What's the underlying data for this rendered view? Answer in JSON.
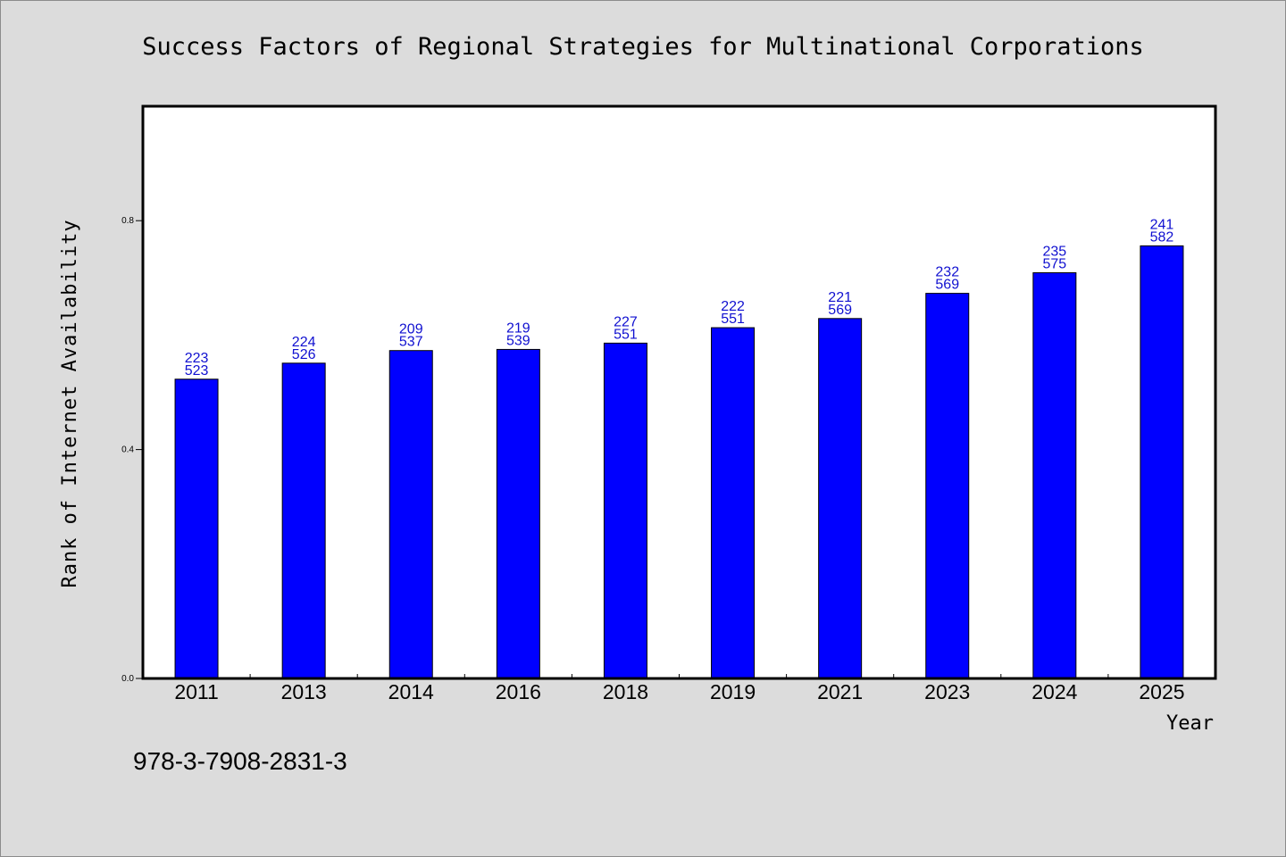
{
  "chart_data": {
    "type": "bar",
    "title": "Success Factors of Regional Strategies for Multinational Corporations",
    "xlabel": "Year",
    "ylabel": "Rank of Internet Availability",
    "categories": [
      "2011",
      "2013",
      "2014",
      "2016",
      "2018",
      "2019",
      "2021",
      "2023",
      "2024",
      "2025"
    ],
    "values": [
      0.523,
      0.551,
      0.573,
      0.575,
      0.586,
      0.613,
      0.629,
      0.673,
      0.709,
      0.756
    ],
    "labels_top": [
      "223",
      "224",
      "209",
      "219",
      "227",
      "222",
      "221",
      "232",
      "235",
      "241"
    ],
    "labels_bottom": [
      "523",
      "526",
      "537",
      "539",
      "551",
      "551",
      "569",
      "569",
      "575",
      "582"
    ],
    "yticks": [
      0.0,
      0.4,
      0.8
    ],
    "ytick_labels": [
      "0.0",
      "0.4",
      "0.8"
    ],
    "ylim": [
      0,
      1.0
    ],
    "bar_color": "#0000ff",
    "label_color": "#1010d0",
    "grid": false,
    "legend": "none"
  },
  "footer": {
    "isbn": "978-3-7908-2831-3"
  }
}
